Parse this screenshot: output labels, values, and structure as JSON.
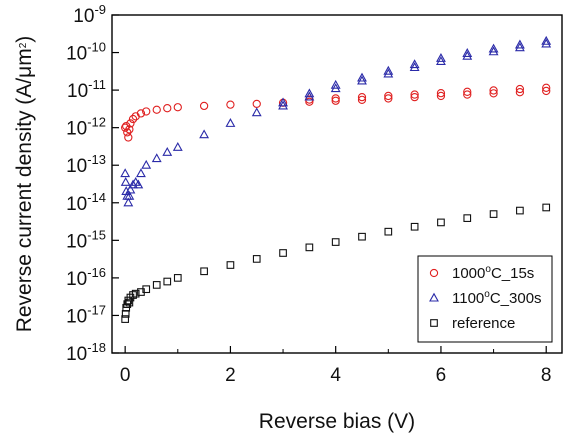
{
  "chart_data": {
    "type": "scatter",
    "title": "",
    "xlabel": "Reverse bias (V)",
    "ylabel": {
      "text": "Reverse current density (A/",
      "mu": "μ",
      "unit_tail": "m",
      "sup": "2",
      "close": ")"
    },
    "x_scale": "linear",
    "y_scale": "log",
    "xlim": [
      -0.25,
      8.3
    ],
    "ylim": [
      1e-18,
      1e-09
    ],
    "x_ticks": [
      {
        "value": 0,
        "label": "0"
      },
      {
        "value": 2,
        "label": "2"
      },
      {
        "value": 4,
        "label": "4"
      },
      {
        "value": 6,
        "label": "6"
      },
      {
        "value": 8,
        "label": "8"
      }
    ],
    "y_ticks": [
      {
        "value": 1e-09,
        "base": "10",
        "exp": "-9"
      },
      {
        "value": 1e-10,
        "base": "10",
        "exp": "-10"
      },
      {
        "value": 1e-11,
        "base": "10",
        "exp": "-11"
      },
      {
        "value": 1e-12,
        "base": "10",
        "exp": "-12"
      },
      {
        "value": 1e-13,
        "base": "10",
        "exp": "-13"
      },
      {
        "value": 1e-14,
        "base": "10",
        "exp": "-14"
      },
      {
        "value": 1e-15,
        "base": "10",
        "exp": "-15"
      },
      {
        "value": 1e-16,
        "base": "10",
        "exp": "-16"
      },
      {
        "value": 1e-17,
        "base": "10",
        "exp": "-17"
      },
      {
        "value": 1e-18,
        "base": "10",
        "exp": "-18"
      }
    ],
    "grid": false,
    "legend_position": "bottom-right",
    "series": [
      {
        "name_parts": {
          "pre": "1000",
          "sup": "o",
          "post": "C_15s"
        },
        "color": "#e02020",
        "marker": "circle",
        "points": [
          [
            0.0,
            1e-12
          ],
          [
            0.02,
            1.1e-12
          ],
          [
            0.04,
            7.5e-13
          ],
          [
            0.06,
            5.5e-13
          ],
          [
            0.08,
            9e-13
          ],
          [
            0.1,
            1.3e-12
          ],
          [
            0.15,
            1.7e-12
          ],
          [
            0.2,
            2e-12
          ],
          [
            0.3,
            2.4e-12
          ],
          [
            0.4,
            2.7e-12
          ],
          [
            0.6,
            3e-12
          ],
          [
            0.8,
            3.3e-12
          ],
          [
            1.0,
            3.5e-12
          ],
          [
            1.5,
            3.8e-12
          ],
          [
            2.0,
            4.1e-12
          ],
          [
            2.5,
            4.3e-12
          ],
          [
            3.0,
            4.6e-12
          ],
          [
            3.5,
            4.9e-12
          ],
          [
            4.0,
            5.2e-12
          ],
          [
            4.5,
            5.5e-12
          ],
          [
            5.0,
            6e-12
          ],
          [
            5.5,
            6.5e-12
          ],
          [
            6.0,
            7e-12
          ],
          [
            6.5,
            7.6e-12
          ],
          [
            7.0,
            8.2e-12
          ],
          [
            7.5,
            8.8e-12
          ],
          [
            8.0,
            9.5e-12
          ],
          [
            3.5,
            5.6e-12
          ],
          [
            4.0,
            6e-12
          ],
          [
            4.5,
            6.5e-12
          ],
          [
            5.0,
            7e-12
          ],
          [
            5.5,
            7.6e-12
          ],
          [
            6.0,
            8.3e-12
          ],
          [
            6.5,
            9e-12
          ],
          [
            7.0,
            9.8e-12
          ],
          [
            7.5,
            1.07e-11
          ],
          [
            8.0,
            1.15e-11
          ]
        ]
      },
      {
        "name_parts": {
          "pre": "1100",
          "sup": "o",
          "post": "C_300s"
        },
        "color": "#2a2aa8",
        "marker": "triangle",
        "points": [
          [
            0.0,
            6e-14
          ],
          [
            0.01,
            3.5e-14
          ],
          [
            0.02,
            2e-14
          ],
          [
            0.04,
            1.5e-14
          ],
          [
            0.06,
            1e-14
          ],
          [
            0.08,
            1.5e-14
          ],
          [
            0.1,
            2.2e-14
          ],
          [
            0.15,
            3e-14
          ],
          [
            0.2,
            3.5e-14
          ],
          [
            0.25,
            3e-14
          ],
          [
            0.3,
            6e-14
          ],
          [
            0.4,
            1e-13
          ],
          [
            0.6,
            1.5e-13
          ],
          [
            0.8,
            2.2e-13
          ],
          [
            1.0,
            3e-13
          ],
          [
            1.5,
            6.5e-13
          ],
          [
            2.0,
            1.3e-12
          ],
          [
            2.5,
            2.5e-12
          ],
          [
            3.0,
            4.6e-12
          ],
          [
            3.5,
            8e-12
          ],
          [
            4.0,
            1.35e-11
          ],
          [
            4.5,
            2.1e-11
          ],
          [
            5.0,
            3.2e-11
          ],
          [
            5.5,
            4.8e-11
          ],
          [
            6.0,
            7e-11
          ],
          [
            6.5,
            9.5e-11
          ],
          [
            7.0,
            1.25e-10
          ],
          [
            7.5,
            1.6e-10
          ],
          [
            8.0,
            2e-10
          ],
          [
            3.0,
            3.8e-12
          ],
          [
            3.5,
            6.6e-12
          ],
          [
            4.0,
            1.1e-11
          ],
          [
            4.5,
            1.75e-11
          ],
          [
            5.0,
            2.7e-11
          ],
          [
            5.5,
            4e-11
          ],
          [
            6.0,
            5.8e-11
          ],
          [
            6.5,
            8e-11
          ],
          [
            7.0,
            1.05e-10
          ],
          [
            7.5,
            1.35e-10
          ],
          [
            8.0,
            1.7e-10
          ]
        ]
      },
      {
        "name_parts": {
          "pre": "reference",
          "sup": "",
          "post": ""
        },
        "color": "#111111",
        "marker": "square",
        "points": [
          [
            0.0,
            8e-18
          ],
          [
            0.01,
            1.1e-17
          ],
          [
            0.02,
            1.6e-17
          ],
          [
            0.04,
            2e-17
          ],
          [
            0.06,
            2.5e-17
          ],
          [
            0.08,
            2.2e-17
          ],
          [
            0.1,
            3e-17
          ],
          [
            0.15,
            3.5e-17
          ],
          [
            0.2,
            3.8e-17
          ],
          [
            0.3,
            4.2e-17
          ],
          [
            0.4,
            5e-17
          ],
          [
            0.6,
            6.5e-17
          ],
          [
            0.8,
            8e-17
          ],
          [
            1.0,
            1e-16
          ],
          [
            1.5,
            1.5e-16
          ],
          [
            2.0,
            2.2e-16
          ],
          [
            2.5,
            3.2e-16
          ],
          [
            3.0,
            4.6e-16
          ],
          [
            3.5,
            6.5e-16
          ],
          [
            4.0,
            9e-16
          ],
          [
            4.5,
            1.25e-15
          ],
          [
            5.0,
            1.7e-15
          ],
          [
            5.5,
            2.3e-15
          ],
          [
            6.0,
            3e-15
          ],
          [
            6.5,
            3.9e-15
          ],
          [
            7.0,
            5e-15
          ],
          [
            7.5,
            6.2e-15
          ],
          [
            8.0,
            7.5e-15
          ]
        ]
      }
    ]
  }
}
